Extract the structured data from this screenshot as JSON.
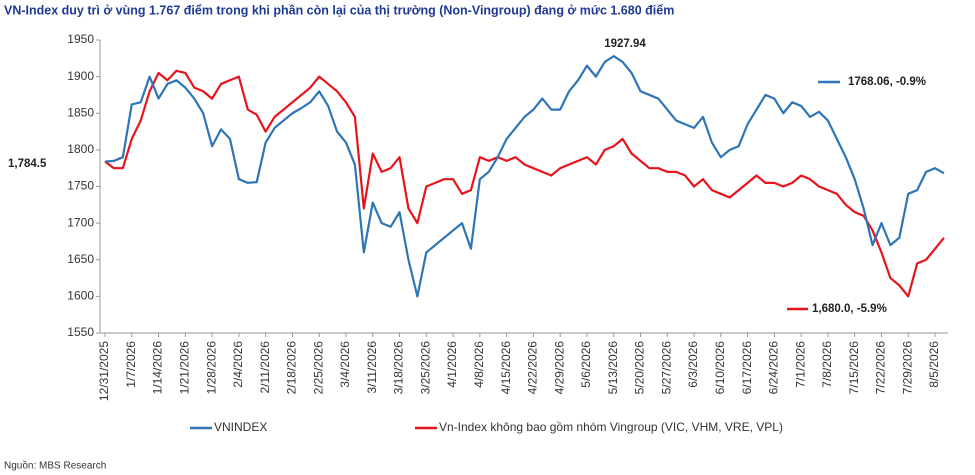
{
  "chart_data": {
    "type": "line",
    "title": "VN-Index duy trì ở vùng 1.767 điểm trong khi phần còn lại của thị trường (Non-Vingroup) đang ở mức 1.680 điểm",
    "source": "Nguồn: MBS Research",
    "categories": [
      "12/31/2025",
      null,
      null,
      "1/7/2026",
      null,
      null,
      "1/14/2026",
      null,
      null,
      "1/21/2026",
      null,
      null,
      "1/28/2026",
      null,
      null,
      "2/4/2026",
      null,
      null,
      "2/11/2026",
      null,
      null,
      "2/18/2026",
      null,
      null,
      "2/25/2026",
      null,
      null,
      "3/4/2026",
      null,
      null,
      "3/11/2026",
      null,
      null,
      "3/18/2026",
      null,
      null,
      "3/25/2026",
      null,
      null,
      "4/1/2026",
      null,
      null,
      "4/8/2026",
      null,
      null,
      "4/15/2026",
      null,
      null,
      "4/22/2026",
      null,
      null,
      "4/29/2026",
      null,
      null,
      "5/6/2026",
      null,
      null,
      "5/13/2026",
      null,
      null,
      "5/20/2026",
      null,
      null,
      "5/27/2026",
      null,
      null,
      "6/3/2026",
      null,
      null,
      "6/10/2026",
      null,
      null,
      "6/17/2026",
      null,
      null,
      "6/24/2026",
      null,
      null,
      "7/1/2026",
      null,
      null,
      "7/8/2026",
      null,
      null,
      "7/15/2026",
      null,
      null,
      "7/22/2026",
      null,
      null,
      "7/29/2026",
      null,
      null,
      "8/5/2026",
      null
    ],
    "series": [
      {
        "name": "VNINDEX",
        "color": "#2e75b6",
        "values": [
          1784,
          1785,
          1790,
          1862,
          1865,
          1900,
          1870,
          1890,
          1895,
          1885,
          1870,
          1850,
          1805,
          1828,
          1815,
          1760,
          1755,
          1756,
          1810,
          1830,
          1840,
          1850,
          1857,
          1865,
          1880,
          1860,
          1825,
          1810,
          1780,
          1660,
          1728,
          1700,
          1695,
          1715,
          1650,
          1600,
          1660,
          1670,
          1680,
          1690,
          1700,
          1665,
          1760,
          1770,
          1790,
          1815,
          1830,
          1845,
          1855,
          1870,
          1855,
          1855,
          1880,
          1895,
          1915,
          1900,
          1920,
          1928,
          1920,
          1905,
          1880,
          1875,
          1870,
          1855,
          1840,
          1835,
          1830,
          1845,
          1810,
          1790,
          1800,
          1805,
          1835,
          1855,
          1875,
          1870,
          1850,
          1865,
          1860,
          1845,
          1852,
          1840,
          1815,
          1790,
          1760,
          1720,
          1670,
          1700,
          1670,
          1680,
          1740,
          1745,
          1770,
          1775,
          1768
        ]
      },
      {
        "name": "Vn-Index không bao gồm nhóm Vingroup (VIC, VHM, VRE, VPL)",
        "color": "#e8141c",
        "values": [
          1784,
          1775,
          1775,
          1815,
          1840,
          1880,
          1905,
          1895,
          1908,
          1905,
          1885,
          1880,
          1870,
          1890,
          1895,
          1900,
          1855,
          1848,
          1825,
          1845,
          1855,
          1865,
          1875,
          1885,
          1900,
          1890,
          1880,
          1865,
          1845,
          1720,
          1795,
          1770,
          1775,
          1790,
          1720,
          1700,
          1750,
          1755,
          1760,
          1760,
          1740,
          1745,
          1790,
          1785,
          1790,
          1785,
          1790,
          1780,
          1775,
          1770,
          1765,
          1775,
          1780,
          1785,
          1790,
          1780,
          1800,
          1805,
          1815,
          1795,
          1785,
          1775,
          1775,
          1770,
          1770,
          1765,
          1750,
          1760,
          1745,
          1740,
          1735,
          1745,
          1755,
          1765,
          1755,
          1755,
          1750,
          1755,
          1765,
          1760,
          1750,
          1745,
          1740,
          1725,
          1715,
          1710,
          1690,
          1660,
          1625,
          1615,
          1600,
          1645,
          1650,
          1665,
          1680
        ]
      }
    ],
    "annotations": [
      "1,784.5",
      "1927.94",
      "1768.06, -0.9%",
      "1,680.0, -5.9%"
    ],
    "ylim": [
      1550,
      1950
    ],
    "yticks": [
      1550,
      1600,
      1650,
      1700,
      1750,
      1800,
      1850,
      1900,
      1950
    ],
    "grid": false
  }
}
